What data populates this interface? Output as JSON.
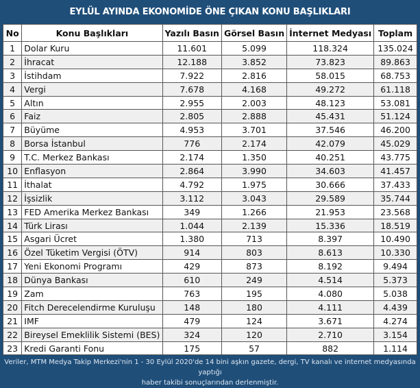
{
  "title": "EYLÜL AYINDA EKONOMİDE ÖNE ÇIKAN KONU BAŞLIKLARI",
  "columns": [
    "No",
    "Konu Başlıkları",
    "Yazılı Basın",
    "Görsel Basın",
    "İnternet Medyası",
    "Toplam"
  ],
  "rows": [
    [
      "1",
      "Dolar Kuru",
      "11.601",
      "5.099",
      "118.324",
      "135.024"
    ],
    [
      "2",
      "İhracat",
      "12.188",
      "3.852",
      "73.823",
      "89.863"
    ],
    [
      "3",
      "İstihdam",
      "7.922",
      "2.816",
      "58.015",
      "68.753"
    ],
    [
      "4",
      "Vergi",
      "7.678",
      "4.168",
      "49.272",
      "61.118"
    ],
    [
      "5",
      "Altın",
      "2.955",
      "2.003",
      "48.123",
      "53.081"
    ],
    [
      "6",
      "Faiz",
      "2.805",
      "2.888",
      "45.431",
      "51.124"
    ],
    [
      "7",
      "Büyüme",
      "4.953",
      "3.701",
      "37.546",
      "46.200"
    ],
    [
      "8",
      "Borsa İstanbul",
      "776",
      "2.174",
      "42.079",
      "45.029"
    ],
    [
      "9",
      "T.C. Merkez Bankası",
      "2.174",
      "1.350",
      "40.251",
      "43.775"
    ],
    [
      "10",
      "Enflasyon",
      "2.864",
      "3.990",
      "34.603",
      "41.457"
    ],
    [
      "11",
      "İthalat",
      "4.792",
      "1.975",
      "30.666",
      "37.433"
    ],
    [
      "12",
      "İşsizlik",
      "3.112",
      "3.043",
      "29.589",
      "35.744"
    ],
    [
      "13",
      "FED Amerika Merkez Bankası",
      "349",
      "1.266",
      "21.953",
      "23.568"
    ],
    [
      "14",
      "Türk Lirası",
      "1.044",
      "2.139",
      "15.336",
      "18.519"
    ],
    [
      "15",
      "Asgari Ücret",
      "1.380",
      "713",
      "8.397",
      "10.490"
    ],
    [
      "16",
      "Özel Tüketim Vergisi (ÖTV)",
      "914",
      "803",
      "8.613",
      "10.330"
    ],
    [
      "17",
      "Yeni Ekonomi Programı",
      "429",
      "873",
      "8.192",
      "9.494"
    ],
    [
      "18",
      "Dünya Bankası",
      "610",
      "249",
      "4.514",
      "5.373"
    ],
    [
      "19",
      "Zam",
      "763",
      "195",
      "4.080",
      "5.038"
    ],
    [
      "20",
      "Fitch Derecelendirme Kuruluşu",
      "148",
      "180",
      "4.111",
      "4.439"
    ],
    [
      "21",
      "IMF",
      "479",
      "124",
      "3.671",
      "4.274"
    ],
    [
      "22",
      "Bireysel Emeklilik Sistemi (BES)",
      "324",
      "120",
      "2.710",
      "3.154"
    ],
    [
      "23",
      "Kredi Garanti Fonu",
      "175",
      "57",
      "882",
      "1.114"
    ]
  ],
  "footer": {
    "line1": "Veriler, MTM Medya Takip Merkezi'nin 1 - 30 Eylül 2020'de 14 bini aşkın gazete, dergi, TV kanalı ve internet medyasında yaptığı",
    "line2": "haber takibi sonuçlarından derlenmiştir."
  }
}
